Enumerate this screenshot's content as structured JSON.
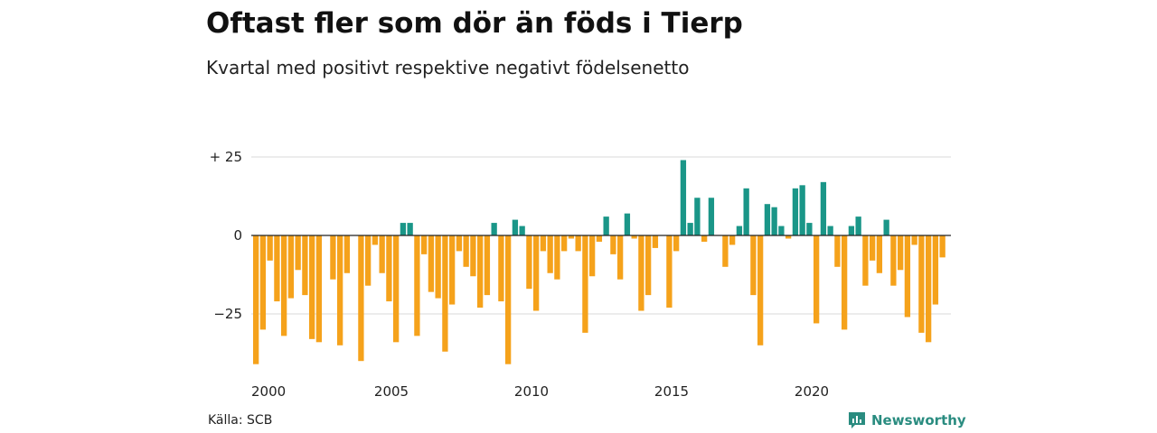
{
  "title": "Oftast fler som dör än föds i Tierp",
  "subtitle": "Kvartal med positivt respektive negativt födelsenetto",
  "source": "Källa: SCB",
  "brand": "Newsworthy",
  "colors": {
    "positive": "#1a9688",
    "negative": "#f5a21b",
    "grid": "#d9d9d9",
    "zero_line": "#222222"
  },
  "chart_data": {
    "type": "bar",
    "xlabel": "",
    "ylabel": "",
    "ylim": [
      -42,
      25
    ],
    "yticks": [
      {
        "value": 25,
        "label": "+ 25"
      },
      {
        "value": 0,
        "label": "0"
      },
      {
        "value": -25,
        "label": "−25"
      }
    ],
    "xticks": [
      "2000",
      "2005",
      "2010",
      "2015",
      "2020"
    ],
    "start": "2000 Q1",
    "frequency": "quarter",
    "grid": "horizontal",
    "values": [
      -41,
      -30,
      -8,
      -21,
      -32,
      -20,
      -11,
      -19,
      -33,
      -34,
      0,
      -14,
      -35,
      -12,
      0,
      -40,
      -16,
      -3,
      -12,
      -21,
      -34,
      4,
      4,
      -32,
      -6,
      -18,
      -20,
      -37,
      -22,
      -5,
      -10,
      -13,
      -23,
      -19,
      4,
      -21,
      -41,
      5,
      3,
      -17,
      -24,
      -5,
      -12,
      -14,
      -5,
      -1,
      -5,
      -31,
      -13,
      -2,
      6,
      -6,
      -14,
      7,
      -1,
      -24,
      -19,
      -4,
      0,
      -23,
      -5,
      24,
      4,
      12,
      -2,
      12,
      0,
      -10,
      -3,
      3,
      15,
      -19,
      -35,
      10,
      9,
      3,
      -1,
      15,
      16,
      4,
      -28,
      17,
      3,
      -10,
      -30,
      3,
      6,
      -16,
      -8,
      -12,
      5,
      -16,
      -11,
      -26,
      -3,
      -31,
      -34,
      -22,
      -7
    ]
  }
}
